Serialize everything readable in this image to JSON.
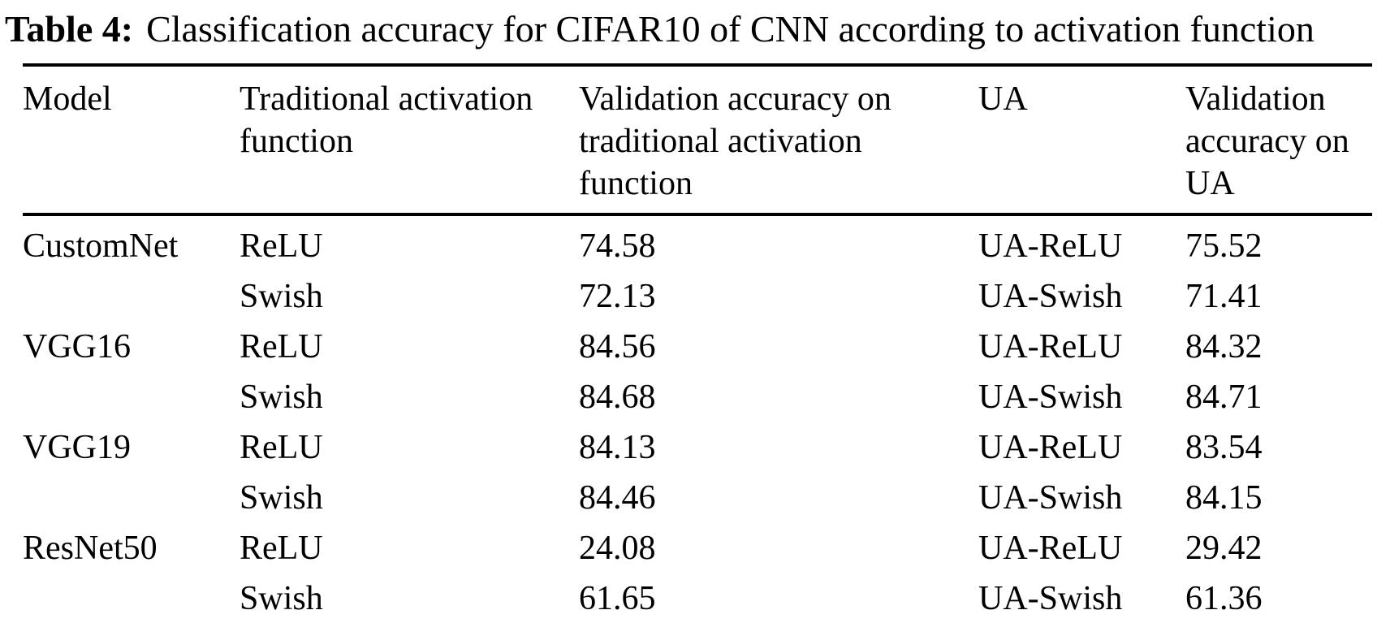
{
  "title": {
    "label": "Table 4:",
    "text": "Classification accuracy for CIFAR10 of CNN according to activation function"
  },
  "table": {
    "columns": [
      "Model",
      "Traditional activation function",
      "Validation accuracy on traditional activation function",
      "UA",
      "Validation accuracy on UA"
    ],
    "rows": [
      {
        "model": "CustomNet",
        "traditional_af": "ReLU",
        "val_acc_traditional": "74.58",
        "ua": "UA-ReLU",
        "val_acc_ua": "75.52"
      },
      {
        "model": "",
        "traditional_af": "Swish",
        "val_acc_traditional": "72.13",
        "ua": "UA-Swish",
        "val_acc_ua": "71.41"
      },
      {
        "model": "VGG16",
        "traditional_af": "ReLU",
        "val_acc_traditional": "84.56",
        "ua": "UA-ReLU",
        "val_acc_ua": "84.32"
      },
      {
        "model": "",
        "traditional_af": "Swish",
        "val_acc_traditional": "84.68",
        "ua": "UA-Swish",
        "val_acc_ua": "84.71"
      },
      {
        "model": "VGG19",
        "traditional_af": "ReLU",
        "val_acc_traditional": "84.13",
        "ua": "UA-ReLU",
        "val_acc_ua": "83.54"
      },
      {
        "model": "",
        "traditional_af": "Swish",
        "val_acc_traditional": "84.46",
        "ua": "UA-Swish",
        "val_acc_ua": "84.15"
      },
      {
        "model": "ResNet50",
        "traditional_af": "ReLU",
        "val_acc_traditional": "24.08",
        "ua": "UA-ReLU",
        "val_acc_ua": "29.42"
      },
      {
        "model": "",
        "traditional_af": "Swish",
        "val_acc_traditional": "61.65",
        "ua": "UA-Swish",
        "val_acc_ua": "61.36"
      }
    ]
  },
  "colors": {
    "background": "#ffffff",
    "text": "#000000",
    "rule": "#000000"
  }
}
